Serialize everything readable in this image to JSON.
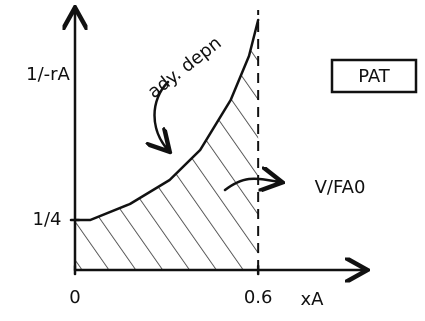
{
  "chart_data": {
    "type": "line",
    "y_label": "1/-rA",
    "x_label": "xA",
    "x": [
      0,
      0.05,
      0.18,
      0.31,
      0.41,
      0.51,
      0.57,
      0.6
    ],
    "series": [
      {
        "values": [
          0.25,
          0.25,
          0.33,
          0.45,
          0.6,
          0.85,
          1.07,
          1.25
        ],
        "color": "#111111"
      }
    ],
    "xlim": [
      0,
      0.95
    ],
    "ylim": [
      0,
      1.3
    ],
    "xticks": [
      0,
      0.6
    ],
    "yticks": [
      {
        "value": 0.25,
        "label": "1/4"
      }
    ],
    "annotations": [
      "ady. depn",
      "V/FA0",
      "PAT"
    ]
  }
}
